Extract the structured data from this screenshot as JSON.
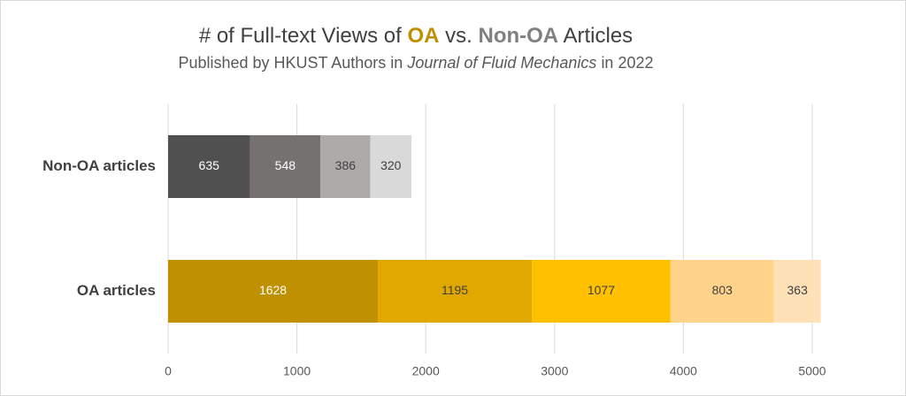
{
  "chart_data": {
    "type": "stacked-bar-horizontal",
    "title": [
      {
        "text": "# of Full-text Views of",
        "color": "#404040",
        "bold": false
      },
      {
        "text": "OA",
        "color": "#bf9000",
        "bold": true
      },
      {
        "text": "vs.",
        "color": "#404040",
        "bold": false
      },
      {
        "text": "Non-OA",
        "color": "#808080",
        "bold": true
      },
      {
        "text": "Articles",
        "color": "#404040",
        "bold": false
      }
    ],
    "subtitle": [
      {
        "text": "Published by HKUST Authors in",
        "italic": false
      },
      {
        "text": "Journal of Fluid Mechanics",
        "italic": true
      },
      {
        "text": "in 2022",
        "italic": false
      }
    ],
    "categories": [
      "Non-OA articles",
      "OA articles"
    ],
    "bars": [
      {
        "values": [
          635,
          548,
          386,
          320
        ],
        "colors": [
          "#505050",
          "#767171",
          "#aeaaaa",
          "#d9d9d9"
        ]
      },
      {
        "values": [
          1628,
          1195,
          1077,
          803,
          363
        ],
        "colors": [
          "#bf9000",
          "#e0a800",
          "#ffc000",
          "#ffd38a",
          "#ffe1b8"
        ]
      }
    ],
    "xlim": [
      0,
      5000
    ],
    "xticks": [
      0,
      1000,
      2000,
      3000,
      4000,
      5000
    ],
    "grid": true
  }
}
